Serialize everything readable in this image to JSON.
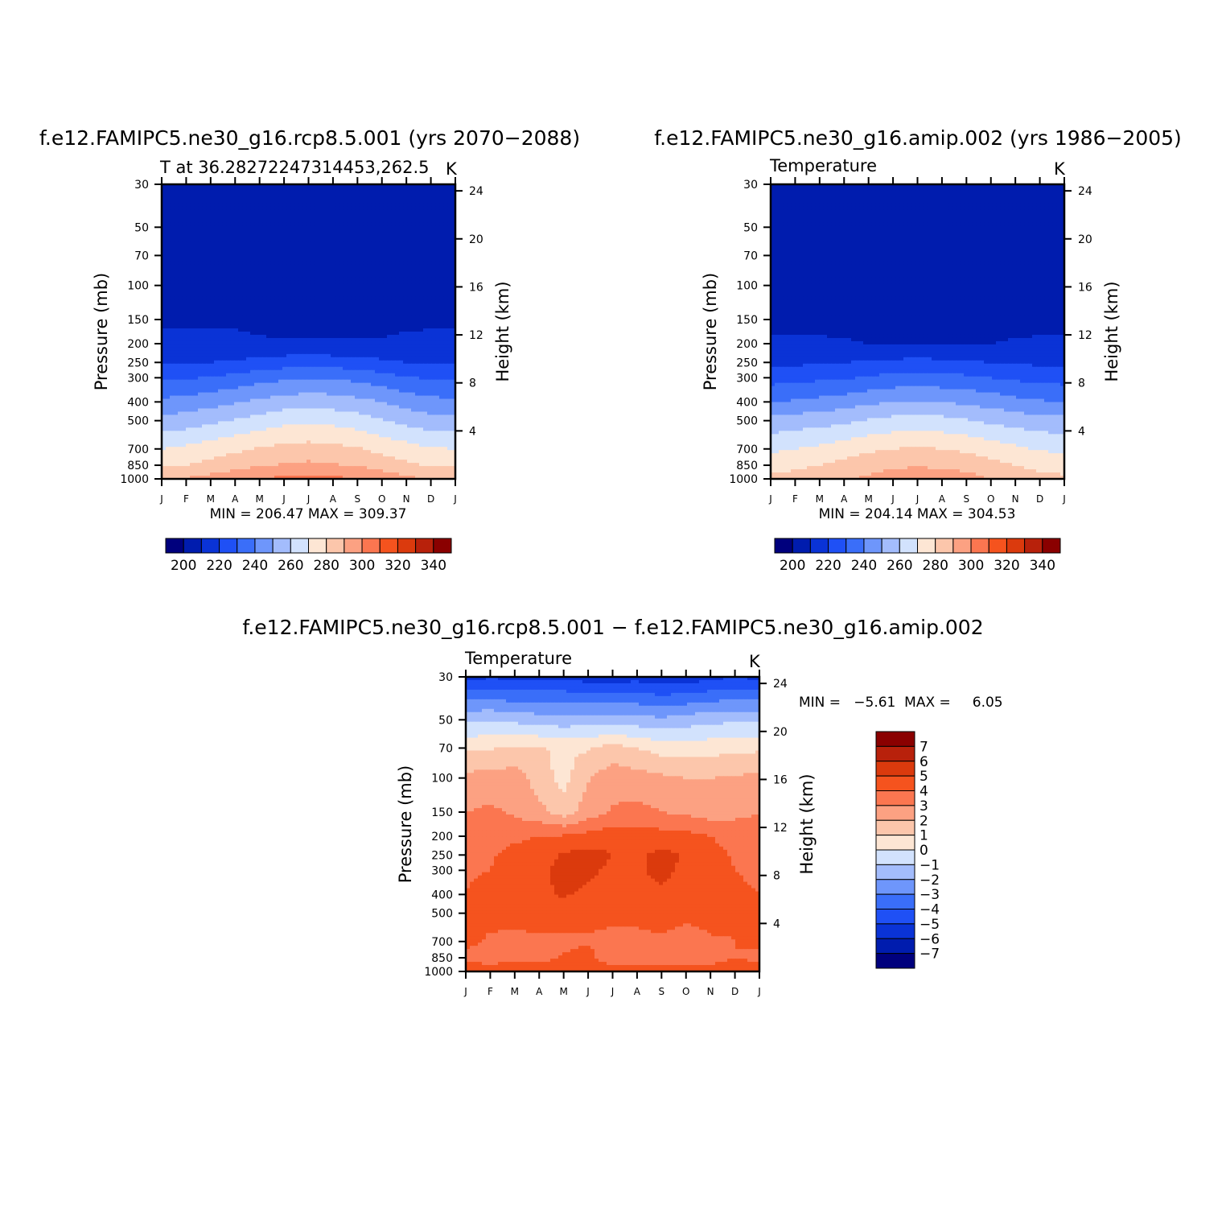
{
  "palettes": {
    "abs": [
      "#00007d",
      "#001cae",
      "#0a33d6",
      "#1f50f5",
      "#3a6ef9",
      "#6e96fb",
      "#a3bcfc",
      "#d2e2fd",
      "#fde6d4",
      "#fcc6ab",
      "#fca182",
      "#fb7650",
      "#f5531e",
      "#db3a0d",
      "#b8210b",
      "#8a0000"
    ],
    "diff": [
      "#00007d",
      "#001cae",
      "#0a33d6",
      "#1f50f5",
      "#3a6ef9",
      "#6e96fb",
      "#a3bcfc",
      "#d2e2fd",
      "#fde6d4",
      "#fcc6ab",
      "#fca182",
      "#fb7650",
      "#f5531e",
      "#db3a0d",
      "#b8210b",
      "#8a0000"
    ]
  },
  "chart_data": [
    {
      "type": "heatmap",
      "id": "p1",
      "title": "f.e12.FAMIPC5.ne30_g16.rcp8.5.001 (yrs 2070−2088)",
      "subtitle_left": "T at 36.28272247314453,262.5",
      "subtitle_right": "K",
      "ylabel": "Pressure (mb)",
      "ylabel_right": "Height (km)",
      "stats": "MIN = 206.47 MAX = 309.37",
      "x_ticks": [
        "J",
        "F",
        "M",
        "A",
        "M",
        "J",
        "J",
        "A",
        "S",
        "O",
        "N",
        "D",
        "J"
      ],
      "y_ticks": [
        "30",
        "50",
        "70",
        "100",
        "150",
        "200",
        "250",
        "300",
        "400",
        "500",
        "700",
        "850",
        "1000"
      ],
      "y_ticks_right": [
        "24",
        "20",
        "16",
        "12",
        "8",
        "4"
      ],
      "colorbar_labels": [
        "200",
        "220",
        "240",
        "260",
        "280",
        "300",
        "320",
        "340"
      ],
      "levels": [
        195,
        200,
        205,
        210,
        215,
        220,
        225,
        230,
        235,
        240,
        245,
        250,
        255,
        260,
        265,
        270,
        275,
        280,
        285,
        290,
        295,
        300,
        305,
        310,
        315,
        320,
        325,
        330,
        335,
        340,
        345
      ],
      "bin_start": 195,
      "bin_width": 10,
      "pressure_levels": [
        1000,
        850,
        700,
        500,
        400,
        300,
        250,
        200,
        150,
        100,
        70,
        50,
        30
      ],
      "values": [
        [
          294,
          296,
          299,
          302,
          305,
          307,
          308,
          307,
          305,
          301,
          297,
          295,
          294
        ],
        [
          283,
          285,
          288,
          291,
          294,
          296,
          297,
          296,
          294,
          291,
          287,
          284,
          283
        ],
        [
          275,
          277,
          280,
          283,
          286,
          288,
          289,
          288,
          286,
          282,
          279,
          276,
          275
        ],
        [
          258,
          260,
          263,
          266,
          269,
          272,
          273,
          272,
          270,
          266,
          262,
          259,
          258
        ],
        [
          247,
          249,
          251,
          254,
          257,
          260,
          261,
          260,
          258,
          255,
          251,
          248,
          247
        ],
        [
          233,
          234,
          236,
          238,
          241,
          243,
          244,
          244,
          242,
          239,
          236,
          234,
          233
        ],
        [
          224,
          224,
          225,
          226,
          228,
          230,
          231,
          230,
          229,
          227,
          225,
          224,
          224
        ],
        [
          218,
          218,
          218,
          218,
          217,
          216,
          216,
          216,
          216,
          216,
          217,
          218,
          218
        ],
        [
          213,
          213,
          213,
          213,
          211,
          211,
          212,
          212,
          212,
          212,
          213,
          213,
          213
        ],
        [
          211,
          213,
          213,
          212,
          208,
          208,
          208,
          209,
          210,
          210,
          211,
          212,
          212
        ],
        [
          209,
          211,
          211,
          210,
          207,
          207,
          207,
          207,
          207,
          207,
          208,
          209,
          209
        ],
        [
          207,
          207,
          208,
          209,
          209,
          210,
          210,
          211,
          211,
          210,
          209,
          208,
          207
        ],
        [
          205,
          205,
          205,
          207,
          210,
          212,
          213,
          212,
          212,
          211,
          206,
          205,
          205
        ]
      ]
    },
    {
      "type": "heatmap",
      "id": "p2",
      "title": "f.e12.FAMIPC5.ne30_g16.amip.002 (yrs 1986−2005)",
      "subtitle_left": "Temperature",
      "subtitle_right": "K",
      "ylabel": "Pressure (mb)",
      "ylabel_right": "Height (km)",
      "stats": "MIN = 204.14 MAX = 304.53",
      "x_ticks": [
        "J",
        "F",
        "M",
        "A",
        "M",
        "J",
        "J",
        "A",
        "S",
        "O",
        "N",
        "D",
        "J"
      ],
      "y_ticks": [
        "30",
        "50",
        "70",
        "100",
        "150",
        "200",
        "250",
        "300",
        "400",
        "500",
        "700",
        "850",
        "1000"
      ],
      "y_ticks_right": [
        "24",
        "20",
        "16",
        "12",
        "8",
        "4"
      ],
      "colorbar_labels": [
        "200",
        "220",
        "240",
        "260",
        "280",
        "300",
        "320",
        "340"
      ],
      "levels": [
        195,
        200,
        205,
        210,
        215,
        220,
        225,
        230,
        235,
        240,
        245,
        250,
        255,
        260,
        265,
        270,
        275,
        280,
        285,
        290,
        295,
        300,
        305,
        310,
        315,
        320,
        325,
        330,
        335,
        340,
        345
      ],
      "bin_start": 195,
      "bin_width": 10,
      "pressure_levels": [
        1000,
        850,
        700,
        500,
        400,
        300,
        250,
        200,
        150,
        100,
        70,
        50,
        30
      ],
      "values": [
        [
          287,
          289,
          291,
          294,
          297,
          300,
          302,
          301,
          299,
          295,
          291,
          288,
          287
        ],
        [
          281,
          283,
          285,
          288,
          291,
          293,
          294,
          293,
          291,
          288,
          285,
          282,
          281
        ],
        [
          273,
          275,
          277,
          280,
          283,
          285,
          286,
          285,
          283,
          280,
          277,
          274,
          273
        ],
        [
          258,
          260,
          261,
          263,
          266,
          268,
          269,
          268,
          266,
          263,
          261,
          259,
          258
        ],
        [
          245,
          246,
          248,
          250,
          253,
          255,
          256,
          255,
          253,
          251,
          248,
          246,
          245
        ],
        [
          231,
          232,
          233,
          234,
          236,
          238,
          239,
          238,
          237,
          235,
          233,
          232,
          231
        ],
        [
          223,
          223,
          224,
          225,
          226,
          227,
          228,
          227,
          226,
          225,
          224,
          223,
          223
        ],
        [
          216,
          216,
          216,
          216,
          215,
          215,
          215,
          215,
          215,
          215,
          216,
          216,
          216
        ],
        [
          213,
          213,
          213,
          212,
          210,
          210,
          210,
          210,
          210,
          211,
          212,
          213,
          213
        ],
        [
          211,
          212,
          213,
          212,
          209,
          208,
          208,
          208,
          208,
          209,
          210,
          211,
          211
        ],
        [
          209,
          209,
          209,
          208,
          207,
          207,
          206,
          207,
          207,
          207,
          207,
          208,
          209
        ],
        [
          210,
          209,
          208,
          208,
          208,
          208,
          209,
          209,
          209,
          209,
          210,
          211,
          210
        ],
        [
          212,
          212,
          212,
          212,
          212,
          212,
          213,
          213,
          213,
          212,
          212,
          212,
          212
        ]
      ]
    },
    {
      "type": "heatmap",
      "id": "p3",
      "title": "f.e12.FAMIPC5.ne30_g16.rcp8.5.001 − f.e12.FAMIPC5.ne30_g16.amip.002",
      "subtitle_left": "Temperature",
      "subtitle_right": "K",
      "ylabel": "Pressure (mb)",
      "ylabel_right": "Height (km)",
      "stats": "MIN =   −5.61  MAX =     6.05",
      "x_ticks": [
        "J",
        "F",
        "M",
        "A",
        "M",
        "J",
        "J",
        "A",
        "S",
        "O",
        "N",
        "D",
        "J"
      ],
      "y_ticks": [
        "30",
        "50",
        "70",
        "100",
        "150",
        "200",
        "250",
        "300",
        "400",
        "500",
        "700",
        "850",
        "1000"
      ],
      "y_ticks_right": [
        "24",
        "20",
        "16",
        "12",
        "8",
        "4"
      ],
      "colorbar_labels": [
        "7",
        "6",
        "5",
        "4",
        "3",
        "2",
        "1",
        "0",
        "−1",
        "−2",
        "−3",
        "−4",
        "−5",
        "−6",
        "−7"
      ],
      "levels": [
        -7,
        -6,
        -5,
        -4,
        -3,
        -2,
        -1,
        0,
        1,
        2,
        3,
        4,
        5,
        6,
        7
      ],
      "bin_start": -8,
      "bin_width": 1,
      "pressure_levels": [
        1000,
        850,
        700,
        500,
        400,
        300,
        250,
        200,
        150,
        100,
        70,
        50,
        30
      ],
      "values": [
        [
          4.6,
          4.3,
          4.4,
          4.6,
          4.9,
          4.5,
          4.4,
          4.5,
          4.4,
          4.3,
          4.2,
          4.3,
          4.6
        ],
        [
          3.8,
          3.7,
          3.9,
          3.6,
          4.1,
          4.3,
          3.4,
          3.5,
          3.6,
          3.7,
          3.8,
          4.0,
          3.8
        ],
        [
          4.2,
          3.9,
          3.8,
          3.7,
          3.8,
          3.9,
          3.6,
          3.7,
          3.8,
          3.6,
          3.9,
          4.0,
          4.2
        ],
        [
          4.1,
          4.2,
          4.3,
          4.6,
          4.6,
          4.3,
          4.4,
          4.3,
          4.5,
          4.2,
          4.3,
          4.1,
          4.1
        ],
        [
          4.0,
          4.3,
          4.6,
          4.8,
          5.1,
          4.8,
          4.6,
          4.7,
          4.9,
          4.6,
          4.4,
          4.1,
          4.0
        ],
        [
          3.9,
          4.0,
          4.5,
          4.8,
          5.3,
          5.2,
          4.8,
          4.9,
          5.2,
          4.8,
          4.4,
          4.0,
          3.9
        ],
        [
          3.7,
          3.9,
          4.3,
          4.6,
          5.1,
          5.4,
          5.0,
          4.8,
          5.3,
          4.9,
          4.3,
          3.9,
          3.7
        ],
        [
          3.4,
          3.6,
          3.8,
          4.0,
          4.1,
          4.3,
          4.6,
          4.5,
          4.4,
          4.3,
          4.0,
          3.7,
          3.4
        ],
        [
          3.0,
          3.2,
          2.8,
          2.3,
          1.5,
          2.5,
          3.1,
          3.3,
          3.0,
          2.8,
          2.5,
          2.7,
          3.0
        ],
        [
          2.3,
          2.4,
          2.5,
          1.5,
          0.6,
          1.9,
          2.6,
          2.4,
          2.2,
          2.0,
          2.0,
          2.1,
          2.3
        ],
        [
          0.8,
          0.9,
          1.2,
          1.1,
          0.8,
          0.9,
          1.4,
          1.0,
          0.6,
          0.5,
          0.6,
          0.8,
          0.8
        ],
        [
          -1.2,
          -1.1,
          -1.3,
          -1.5,
          -1.6,
          -1.5,
          -1.5,
          -1.6,
          -1.8,
          -1.5,
          -1.3,
          -1.2,
          -1.2
        ],
        [
          -5.3,
          -5.1,
          -5.3,
          -5.2,
          -5.2,
          -5.5,
          -5.5,
          -5.4,
          -5.6,
          -5.6,
          -5.3,
          -5.0,
          -5.3
        ]
      ]
    }
  ]
}
